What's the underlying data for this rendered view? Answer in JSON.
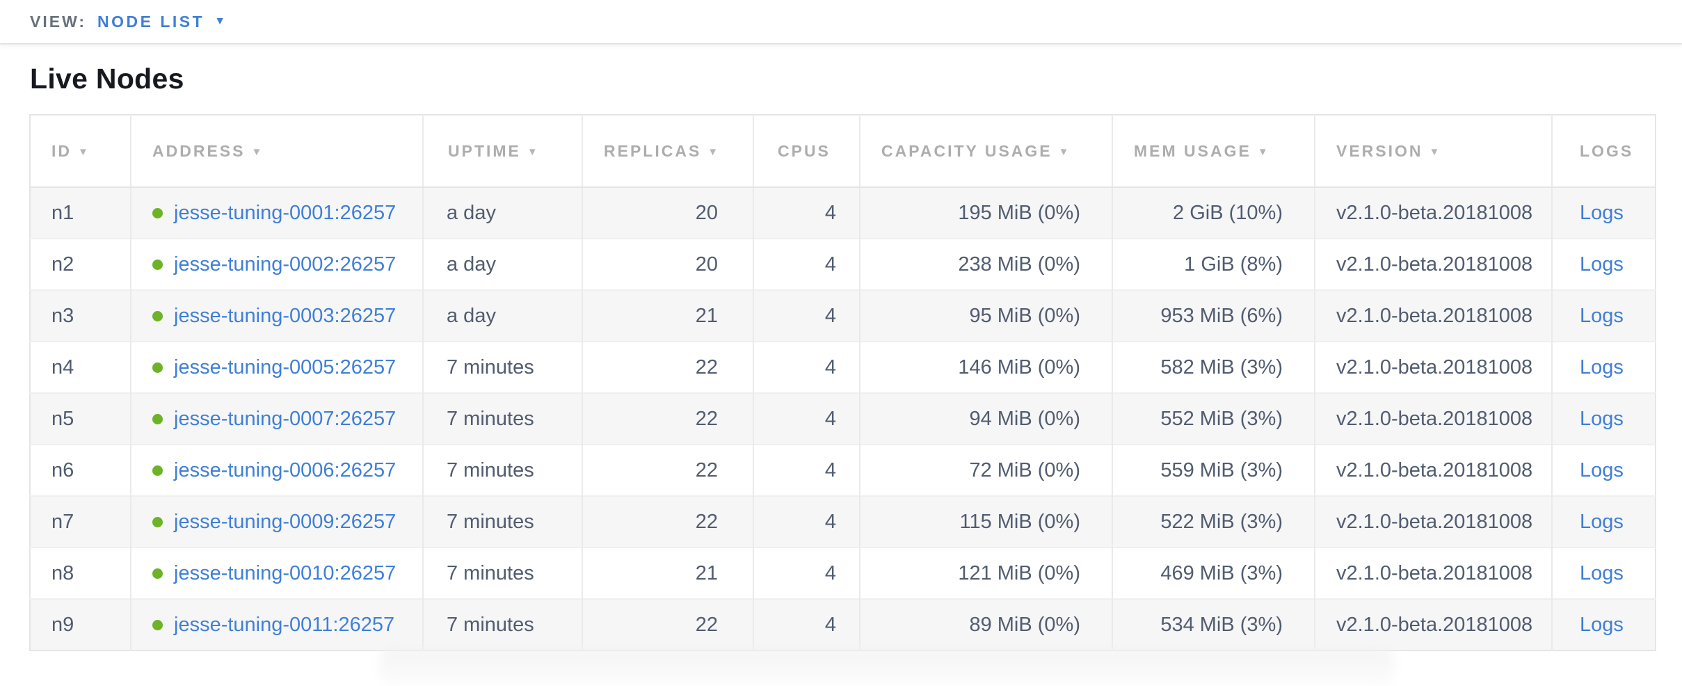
{
  "view_bar": {
    "label": "VIEW:",
    "selected": "NODE LIST",
    "caret_icon": "caret-down-icon"
  },
  "page": {
    "title": "Live Nodes"
  },
  "colors": {
    "accent_blue": "#3f7fd8",
    "live_status_green": "#6db327",
    "header_gray": "#adadad",
    "cell_text": "#515c70",
    "stripe_bg": "#f6f6f6"
  },
  "table": {
    "columns": [
      {
        "key": "id",
        "label": "ID",
        "sortable": true
      },
      {
        "key": "address",
        "label": "ADDRESS",
        "sortable": true
      },
      {
        "key": "uptime",
        "label": "UPTIME",
        "sortable": true
      },
      {
        "key": "replicas",
        "label": "REPLICAS",
        "sortable": true
      },
      {
        "key": "cpus",
        "label": "CPUS",
        "sortable": false
      },
      {
        "key": "capacity",
        "label": "CAPACITY USAGE",
        "sortable": true
      },
      {
        "key": "mem",
        "label": "MEM USAGE",
        "sortable": true
      },
      {
        "key": "version",
        "label": "VERSION",
        "sortable": true
      },
      {
        "key": "logs",
        "label": "LOGS",
        "sortable": false
      }
    ],
    "rows": [
      {
        "id": "n1",
        "address": "jesse-tuning-0001:26257",
        "uptime": "a day",
        "replicas": "20",
        "cpus": "4",
        "capacity": "195 MiB (0%)",
        "mem": "2 GiB (10%)",
        "version": "v2.1.0-beta.20181008",
        "logs": "Logs"
      },
      {
        "id": "n2",
        "address": "jesse-tuning-0002:26257",
        "uptime": "a day",
        "replicas": "20",
        "cpus": "4",
        "capacity": "238 MiB (0%)",
        "mem": "1 GiB (8%)",
        "version": "v2.1.0-beta.20181008",
        "logs": "Logs"
      },
      {
        "id": "n3",
        "address": "jesse-tuning-0003:26257",
        "uptime": "a day",
        "replicas": "21",
        "cpus": "4",
        "capacity": "95 MiB (0%)",
        "mem": "953 MiB (6%)",
        "version": "v2.1.0-beta.20181008",
        "logs": "Logs"
      },
      {
        "id": "n4",
        "address": "jesse-tuning-0005:26257",
        "uptime": "7 minutes",
        "replicas": "22",
        "cpus": "4",
        "capacity": "146 MiB (0%)",
        "mem": "582 MiB (3%)",
        "version": "v2.1.0-beta.20181008",
        "logs": "Logs"
      },
      {
        "id": "n5",
        "address": "jesse-tuning-0007:26257",
        "uptime": "7 minutes",
        "replicas": "22",
        "cpus": "4",
        "capacity": "94 MiB (0%)",
        "mem": "552 MiB (3%)",
        "version": "v2.1.0-beta.20181008",
        "logs": "Logs"
      },
      {
        "id": "n6",
        "address": "jesse-tuning-0006:26257",
        "uptime": "7 minutes",
        "replicas": "22",
        "cpus": "4",
        "capacity": "72 MiB (0%)",
        "mem": "559 MiB (3%)",
        "version": "v2.1.0-beta.20181008",
        "logs": "Logs"
      },
      {
        "id": "n7",
        "address": "jesse-tuning-0009:26257",
        "uptime": "7 minutes",
        "replicas": "22",
        "cpus": "4",
        "capacity": "115 MiB (0%)",
        "mem": "522 MiB (3%)",
        "version": "v2.1.0-beta.20181008",
        "logs": "Logs"
      },
      {
        "id": "n8",
        "address": "jesse-tuning-0010:26257",
        "uptime": "7 minutes",
        "replicas": "21",
        "cpus": "4",
        "capacity": "121 MiB (0%)",
        "mem": "469 MiB (3%)",
        "version": "v2.1.0-beta.20181008",
        "logs": "Logs"
      },
      {
        "id": "n9",
        "address": "jesse-tuning-0011:26257",
        "uptime": "7 minutes",
        "replicas": "22",
        "cpus": "4",
        "capacity": "89 MiB (0%)",
        "mem": "534 MiB (3%)",
        "version": "v2.1.0-beta.20181008",
        "logs": "Logs"
      }
    ]
  }
}
